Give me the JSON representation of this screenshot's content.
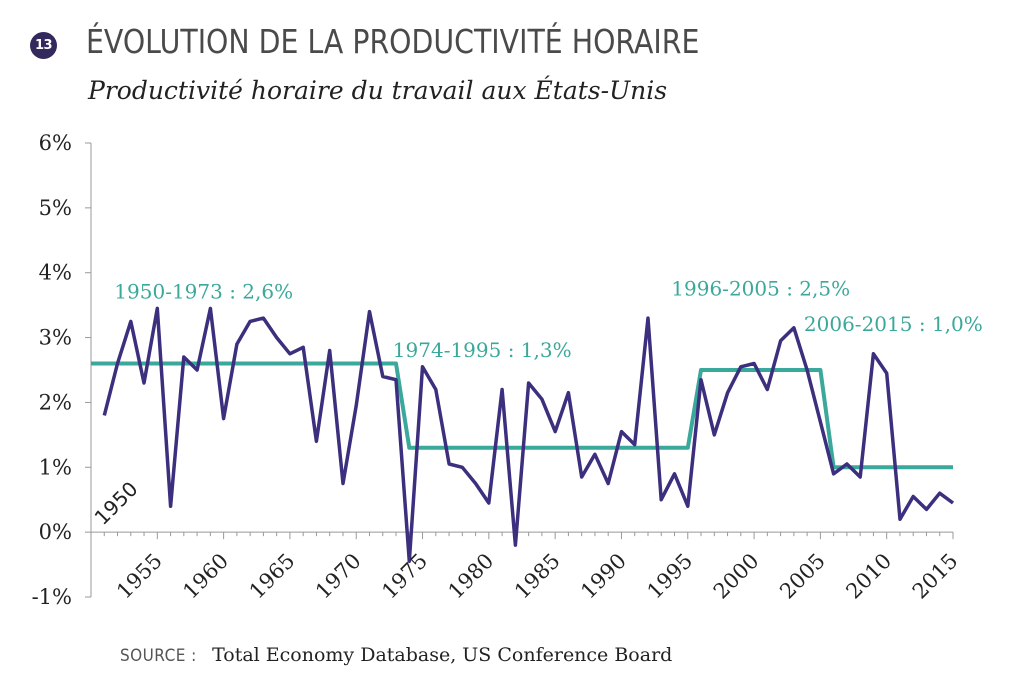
{
  "header": {
    "badge": "13",
    "title": "ÉVOLUTION DE LA PRODUCTIVITÉ HORAIRE",
    "subtitle": "Productivité horaire du travail aux États-Unis"
  },
  "source": {
    "label": "SOURCE :",
    "text": "Total Economy Database, US Conference Board"
  },
  "chart_data": {
    "type": "line",
    "title": "ÉVOLUTION DE LA PRODUCTIVITÉ HORAIRE",
    "subtitle": "Productivité horaire du travail aux États-Unis",
    "ylim": [
      -1,
      6
    ],
    "xlim": [
      1950,
      2015
    ],
    "y_ticks": [
      -1,
      0,
      1,
      2,
      3,
      4,
      5,
      6
    ],
    "y_tick_labels": [
      "-1%",
      "0%",
      "1%",
      "2%",
      "3%",
      "4%",
      "5%",
      "6%"
    ],
    "x_ticks": [
      1955,
      1960,
      1965,
      1970,
      1975,
      1980,
      1985,
      1990,
      1995,
      2000,
      2005,
      2010,
      2015
    ],
    "start_label": "1950",
    "grid": false,
    "colors": {
      "annual": "#3b2f7e",
      "period": "#3aa89a"
    },
    "series": [
      {
        "x": [
          1951,
          1952,
          1953,
          1954,
          1955,
          1956,
          1957,
          1958,
          1959,
          1960,
          1961,
          1962,
          1963,
          1964,
          1965,
          1966,
          1967,
          1968,
          1969,
          1970,
          1971,
          1972,
          1973,
          1974,
          1975,
          1976,
          1977,
          1978,
          1979,
          1980,
          1981,
          1982,
          1983,
          1984,
          1985,
          1986,
          1987,
          1988,
          1989,
          1990,
          1991,
          1992,
          1993,
          1994,
          1995,
          1996,
          1997,
          1998,
          1999,
          2000,
          2001,
          2002,
          2003,
          2004,
          2005,
          2006,
          2007,
          2008,
          2009,
          2010,
          2011,
          2012,
          2013,
          2014,
          2015
        ],
        "values": [
          1.8,
          2.6,
          3.25,
          2.3,
          3.45,
          0.4,
          2.7,
          2.5,
          3.45,
          1.75,
          2.9,
          3.25,
          3.3,
          3.0,
          2.75,
          2.85,
          1.4,
          2.8,
          0.75,
          1.95,
          3.4,
          2.4,
          2.35,
          -0.45,
          2.55,
          2.2,
          1.05,
          1.0,
          0.75,
          0.45,
          2.2,
          -0.2,
          2.3,
          2.05,
          1.55,
          2.15,
          0.85,
          1.2,
          0.75,
          1.55,
          1.35,
          3.3,
          0.5,
          0.9,
          0.4,
          2.35,
          1.5,
          2.15,
          2.55,
          2.6,
          2.2,
          2.95,
          3.15,
          2.5,
          1.7,
          0.9,
          1.05,
          0.85,
          2.75,
          2.45,
          0.2,
          0.55,
          0.35,
          0.6,
          0.45
        ]
      },
      {
        "x": [
          1950,
          1973,
          1974,
          1995,
          1996,
          2005,
          2006,
          2015
        ],
        "values": [
          2.6,
          2.6,
          1.3,
          1.3,
          2.5,
          2.5,
          1.0,
          1.0
        ]
      }
    ],
    "annotations": [
      {
        "text": "1950-1973 : 2,6%",
        "x": 1958.5,
        "y": 3.6
      },
      {
        "text": "1974-1995 : 1,3%",
        "x": 1979.5,
        "y": 2.7
      },
      {
        "text": "1996-2005 : 2,5%",
        "x": 2000.5,
        "y": 3.65
      },
      {
        "text": "2006-2015 : 1,0%",
        "x": 2010.5,
        "y": 3.1
      }
    ]
  }
}
